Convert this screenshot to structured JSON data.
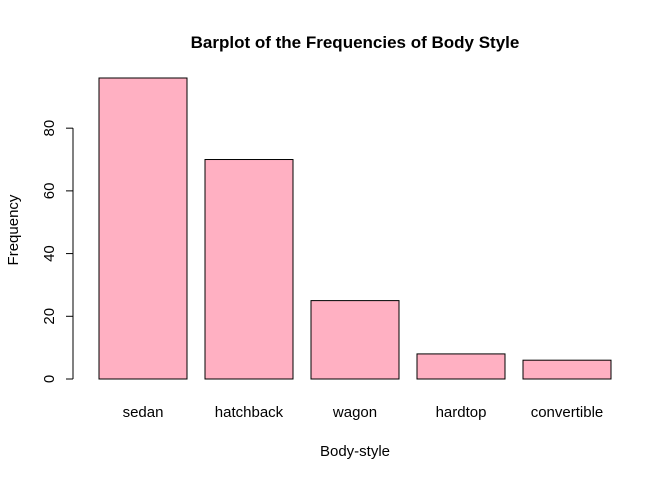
{
  "chart_data": {
    "type": "bar",
    "title": "Barplot of the Frequencies of Body Style",
    "xlabel": "Body-style",
    "ylabel": "Frequency",
    "categories": [
      "sedan",
      "hatchback",
      "wagon",
      "hardtop",
      "convertible"
    ],
    "values": [
      96,
      70,
      25,
      8,
      6
    ],
    "ylim": [
      0,
      96
    ],
    "yticks": [
      0,
      20,
      40,
      60,
      80
    ],
    "grid": false,
    "bar_color": "#FFB0C2",
    "bar_border_color": "#000000"
  }
}
